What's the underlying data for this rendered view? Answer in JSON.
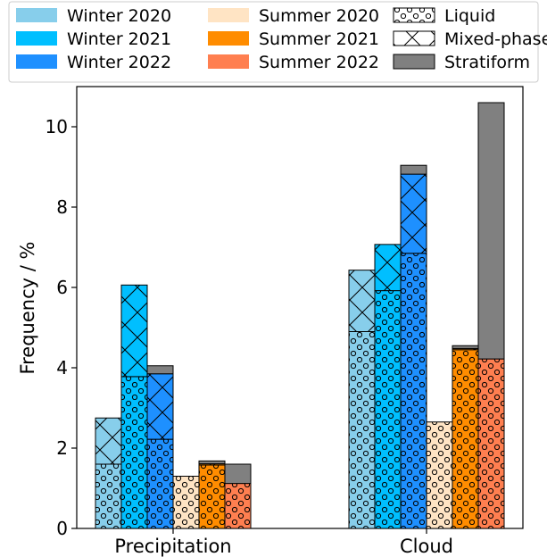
{
  "chart_data": {
    "type": "bar",
    "stacked": true,
    "categories": [
      "Precipitation",
      "Cloud"
    ],
    "ylabel": "Frequency / %",
    "xlabel": "",
    "title": "",
    "ylim": [
      0,
      11
    ],
    "yticks": [
      0,
      2,
      4,
      6,
      8,
      10
    ],
    "legend_placement": "top, above plot, 3 columns",
    "grid": false,
    "season_series": [
      {
        "name": "Winter 2020",
        "color": "#87ceeb"
      },
      {
        "name": "Winter 2021",
        "color": "#00bfff"
      },
      {
        "name": "Winter 2022",
        "color": "#1e90ff"
      },
      {
        "name": "Summer 2020",
        "color": "#ffe4c4"
      },
      {
        "name": "Summer 2021",
        "color": "#ff8c00"
      },
      {
        "name": "Summer 2022",
        "color": "#ff7f50"
      }
    ],
    "phase_series": [
      {
        "name": "Liquid",
        "hatch": "circles"
      },
      {
        "name": "Mixed-phase",
        "hatch": "cross"
      },
      {
        "name": "Stratiform",
        "color": "#808080"
      }
    ],
    "values": {
      "Precipitation": [
        {
          "season": "Winter 2020",
          "Liquid": 1.6,
          "Mixed-phase": 1.15,
          "Stratiform": 0.0
        },
        {
          "season": "Winter 2021",
          "Liquid": 3.78,
          "Mixed-phase": 2.28,
          "Stratiform": 0.0
        },
        {
          "season": "Winter 2022",
          "Liquid": 2.22,
          "Mixed-phase": 1.63,
          "Stratiform": 0.2
        },
        {
          "season": "Summer 2020",
          "Liquid": 1.3,
          "Mixed-phase": 0.0,
          "Stratiform": 0.0
        },
        {
          "season": "Summer 2021",
          "Liquid": 1.58,
          "Mixed-phase": 0.03,
          "Stratiform": 0.07
        },
        {
          "season": "Summer 2022",
          "Liquid": 1.12,
          "Mixed-phase": 0.0,
          "Stratiform": 0.48
        }
      ],
      "Cloud": [
        {
          "season": "Winter 2020",
          "Liquid": 4.9,
          "Mixed-phase": 1.53,
          "Stratiform": 0.0
        },
        {
          "season": "Winter 2021",
          "Liquid": 5.92,
          "Mixed-phase": 1.15,
          "Stratiform": 0.0
        },
        {
          "season": "Winter 2022",
          "Liquid": 6.85,
          "Mixed-phase": 1.97,
          "Stratiform": 0.22
        },
        {
          "season": "Summer 2020",
          "Liquid": 2.65,
          "Mixed-phase": 0.0,
          "Stratiform": 0.0
        },
        {
          "season": "Summer 2021",
          "Liquid": 4.45,
          "Mixed-phase": 0.03,
          "Stratiform": 0.07
        },
        {
          "season": "Summer 2022",
          "Liquid": 4.22,
          "Mixed-phase": 0.0,
          "Stratiform": 6.38
        }
      ]
    }
  }
}
